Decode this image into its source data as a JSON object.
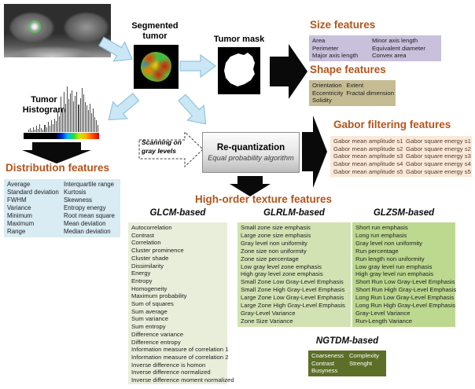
{
  "colors": {
    "heading_text": "#b4541b",
    "size_box": "#c9c0dc",
    "shape_box": "#c6bc93",
    "gabor_box": "#fbe8d7",
    "distribution_box": "#d9ebf3",
    "glcm_box": "#e9eeda",
    "glrlm_box": "#d3e2b3",
    "glzsm_box": "#bdd88f",
    "ngtdm_box": "#5c6e28",
    "arrow_blue_fill": "#cbe7f6",
    "arrow_blue_stroke": "#93c7e0",
    "arrow_black": "#0a0a0a"
  },
  "pipeline": {
    "segmented_tumor_label": "Segmented tumor",
    "tumor_mask_label": "Tumor mask",
    "tumor_histogram_label": "Tumor Histogram",
    "scanning_label": "Scanning on gray levels",
    "requantization_title": "Re-quantization",
    "requantization_subtitle": "Equal probability algorithm"
  },
  "tumor_histogram": {
    "bars": [
      5,
      9,
      4,
      11,
      6,
      14,
      7,
      18,
      9,
      5,
      16,
      11,
      22,
      13,
      26,
      17,
      30,
      24,
      44,
      34,
      78,
      52,
      88,
      62,
      100,
      72,
      84,
      92,
      68,
      80,
      88,
      60,
      74,
      96,
      82,
      66,
      58,
      48,
      62,
      42,
      52,
      32,
      26,
      16
    ]
  },
  "features": {
    "size": {
      "title": "Size features",
      "col1": [
        "Area",
        "Perimeter",
        "Major axis length"
      ],
      "col2": [
        "Minor axis length",
        "Equivalent diameter",
        "Convex area"
      ]
    },
    "shape": {
      "title": "Shape features",
      "col1": [
        "Orientation",
        "Eccentricity",
        "Solidity"
      ],
      "col2": [
        "Extent",
        "Fractal dimension"
      ]
    },
    "gabor": {
      "title": "Gabor filtering features",
      "col1": [
        "Gabor mean amplitude s1",
        "Gabor mean amplitude s2",
        "Gabor mean amplitude s3",
        "Gabor mean amplitude s4",
        "Gabor mean amplitude s5"
      ],
      "col2": [
        "Gabor square energy s1",
        "Gabor square energy s2",
        "Gabor square energy s3",
        "Gabor square energy s4",
        "Gabor square energy s5"
      ]
    },
    "distribution": {
      "title": "Distribution features",
      "col1": [
        "Average",
        "Standard deviation",
        "FWHM",
        "Variance",
        "Minimum",
        "Maximum",
        "Range"
      ],
      "col2": [
        "Interquartile range",
        "Kurtosis",
        "Skewness",
        "Entropy energy",
        "Root mean square",
        "Mean deviation",
        "Median deviation"
      ]
    },
    "high_order_title": "High-order texture features",
    "glcm": {
      "title": "GLCM-based",
      "items": [
        "Autocorrelation",
        "Contrast",
        "Correlation",
        "Cluster prominence",
        "Cluster shade",
        "Dissimilarity",
        "Energy",
        "Entropy",
        "Homogeneity",
        "Maximum probability",
        "Sum of squares",
        "Sum average",
        "Sum variance",
        "Sum entropy",
        "Difference variance",
        "Difference entropy",
        "Information measure of correlation 1",
        "Information measure of correlation 2",
        "Inverse difference is homon",
        "Inverse difference normalized",
        "Inverse difference moment normalized"
      ]
    },
    "glrlm": {
      "title": "GLRLM-based",
      "items": [
        "Small zone size emphasis",
        "Large zone size emphasis",
        "Gray level non uniformity",
        "Zone size non uniformity",
        "Zone size percentage",
        "Low gray level zone emphasis",
        "High gray level zone emphasis",
        "Small Zone Low Gray-Level Emphasis",
        "Small Zone High Gray-Level Emphasis",
        "Large Zone Low Gray-Level Emphasis",
        "Large Zone High Gray-Level Emphasis",
        "Gray-Level Variance",
        "Zone Size Variance"
      ]
    },
    "glzsm": {
      "title": "GLZSM-based",
      "items": [
        "Short run emphasis",
        "Long run emphasis",
        "Gray level non uniformity",
        "Run percentage",
        "Run length non uniformity",
        "Low gray level run emphasis",
        "High gray level run emphasis",
        "Short Run Low Gray-Level Emphasis",
        "Short Run High Gray-Level Emphasis",
        "Long Run Low Gray-Level Emphasis",
        "Long Run High Gray-Level Emphasis",
        "Gray-Level Variance",
        "Run-Length Variance"
      ]
    },
    "ngtdm": {
      "title": "NGTDM-based",
      "col1": [
        "Coarseness",
        "Contrast",
        "Busyness"
      ],
      "col2": [
        "Complexity",
        "Strenght"
      ]
    }
  }
}
